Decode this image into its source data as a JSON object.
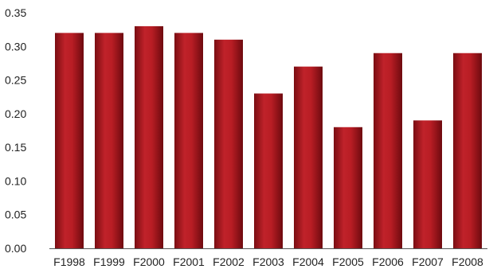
{
  "chart_data": {
    "type": "bar",
    "categories": [
      "F1998",
      "F1999",
      "F2000",
      "F2001",
      "F2002",
      "F2003",
      "F2004",
      "F2005",
      "F2006",
      "F2007",
      "F2008"
    ],
    "values": [
      0.32,
      0.32,
      0.33,
      0.32,
      0.31,
      0.23,
      0.27,
      0.18,
      0.29,
      0.19,
      0.29
    ],
    "title": "",
    "xlabel": "",
    "ylabel": "",
    "ylim": [
      0,
      0.35
    ],
    "yticks": [
      "0.00",
      "0.05",
      "0.10",
      "0.15",
      "0.20",
      "0.25",
      "0.30",
      "0.35"
    ],
    "grid": false,
    "legend": "none",
    "bar_color": "#a8151b"
  }
}
